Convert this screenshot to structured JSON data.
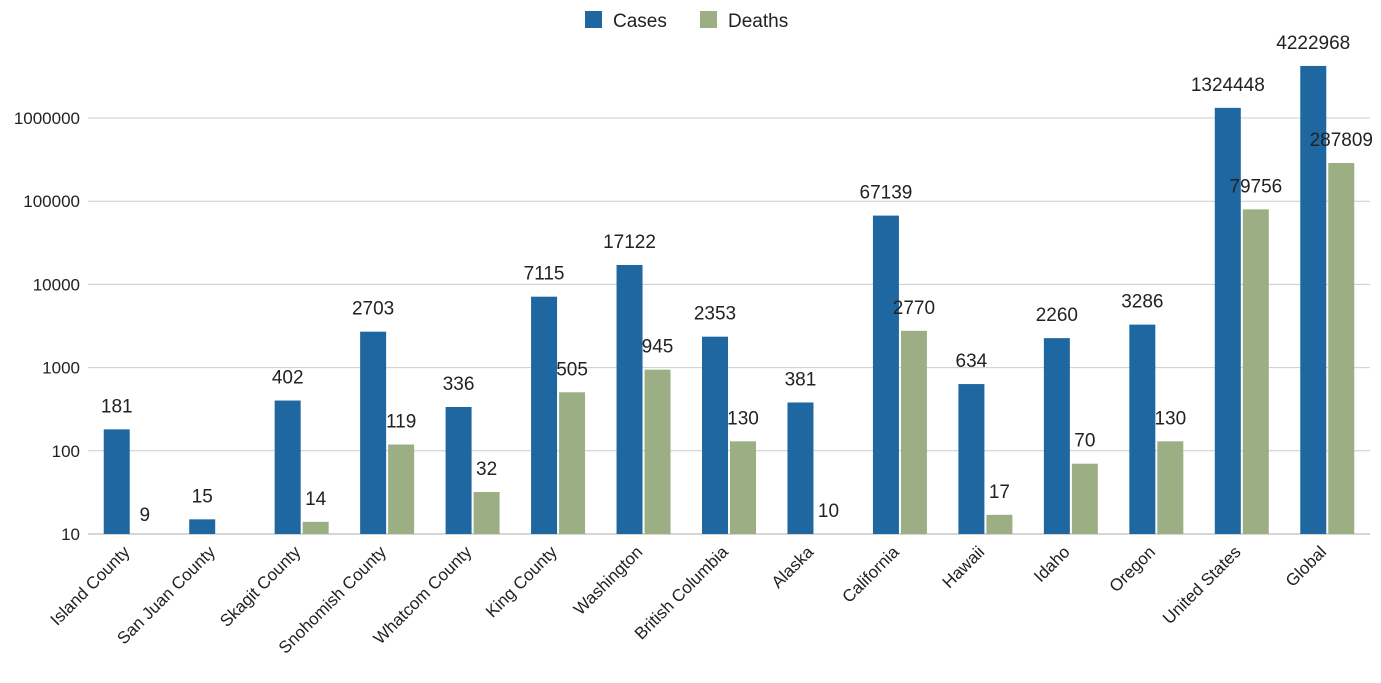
{
  "chart_data": {
    "type": "bar",
    "title": "",
    "xlabel": "",
    "ylabel": "",
    "y_scale": "log",
    "ylim": [
      10,
      4222968
    ],
    "y_ticks": [
      "10",
      "100",
      "1000",
      "10000",
      "100000",
      "1000000"
    ],
    "grid": true,
    "legend_position": "top",
    "categories": [
      "Island County",
      "San Juan County",
      "Skagit County",
      "Snohomish County",
      "Whatcom County",
      "King County",
      "Washington",
      "British Columbia",
      "Alaska",
      "California",
      "Hawaii",
      "Idaho",
      "Oregon",
      "United States",
      "Global"
    ],
    "series": [
      {
        "name": "Cases",
        "color": "#1f67a0",
        "values": [
          181,
          15,
          402,
          2703,
          336,
          7115,
          17122,
          2353,
          381,
          67139,
          634,
          2260,
          3286,
          1324448,
          4222968
        ],
        "labels": [
          "181",
          "15",
          "402",
          "2703",
          "336",
          "7115",
          "17122",
          "2353",
          "381",
          "67139",
          "634",
          "2260",
          "3286",
          "1324448",
          "4222968"
        ]
      },
      {
        "name": "Deaths",
        "color": "#9caf84",
        "values": [
          9,
          null,
          14,
          119,
          32,
          505,
          945,
          130,
          10,
          2770,
          17,
          70,
          130,
          79756,
          287809
        ],
        "labels": [
          "9",
          "",
          "14",
          "119",
          "32",
          "505",
          "945",
          "130",
          "10",
          "2770",
          "17",
          "70",
          "130",
          "79756",
          "287809"
        ]
      }
    ]
  }
}
